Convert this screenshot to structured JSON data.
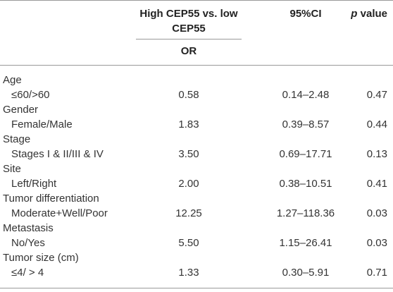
{
  "header": {
    "col_or_line1": "High CEP55 vs. low",
    "col_or_line2": "CEP55",
    "col_or_sub": "OR",
    "col_ci": "95%CI",
    "col_p_italic": "p",
    "col_p_rest": " value"
  },
  "groups": [
    {
      "name": "Age",
      "row": {
        "label": "≤60/>60",
        "or": "0.58",
        "ci": "0.14–2.48",
        "p": "0.47"
      }
    },
    {
      "name": "Gender",
      "row": {
        "label": "Female/Male",
        "or": "1.83",
        "ci": "0.39–8.57",
        "p": "0.44"
      }
    },
    {
      "name": "Stage",
      "row": {
        "label": "Stages I & II/III & IV",
        "or": "3.50",
        "ci": "0.69–17.71",
        "p": "0.13"
      }
    },
    {
      "name": "Site",
      "row": {
        "label": "Left/Right",
        "or": "2.00",
        "ci": "0.38–10.51",
        "p": "0.41"
      }
    },
    {
      "name": "Tumor differentiation",
      "row": {
        "label": "Moderate+Well/Poor",
        "or": "12.25",
        "ci": "1.27–118.36",
        "p": "0.03"
      }
    },
    {
      "name": "Metastasis",
      "row": {
        "label": "No/Yes",
        "or": "5.50",
        "ci": "1.15–26.41",
        "p": "0.03"
      }
    },
    {
      "name": "Tumor size (cm)",
      "row": {
        "label": "≤4/ > 4",
        "or": "1.33",
        "ci": "0.30–5.91",
        "p": "0.71"
      }
    }
  ]
}
